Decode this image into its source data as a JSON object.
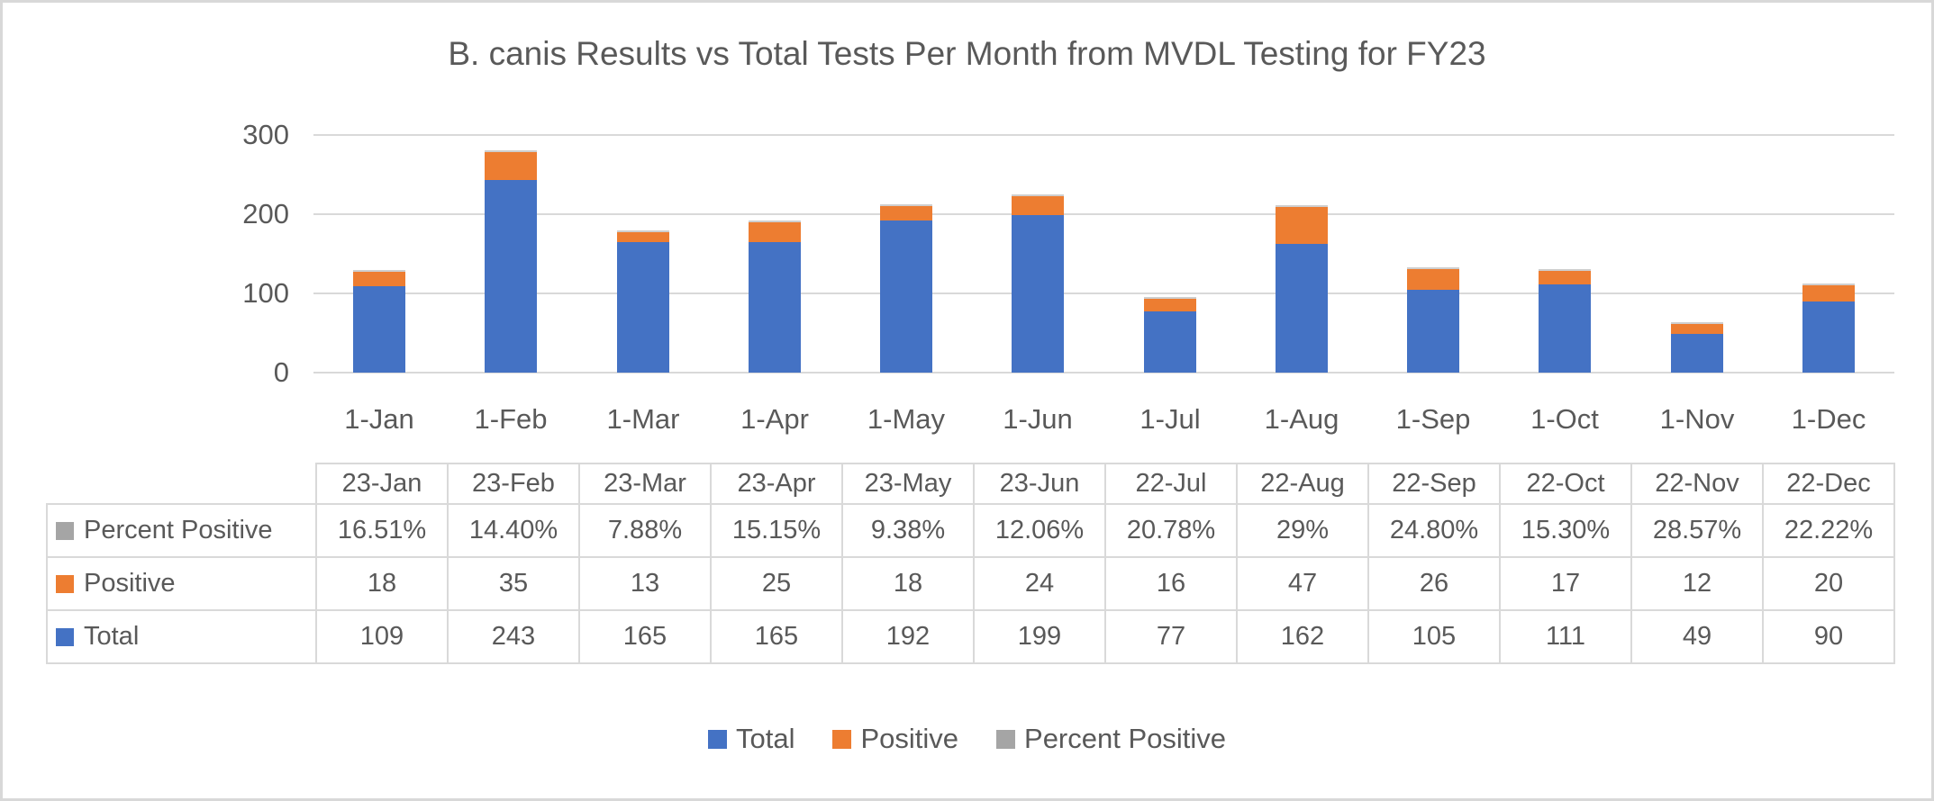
{
  "chart_data": {
    "type": "bar",
    "stacked": true,
    "title": "B. canis Results vs Total Tests Per Month from MVDL Testing for FY23",
    "x_tick_labels": [
      "1-Jan",
      "1-Feb",
      "1-Mar",
      "1-Apr",
      "1-May",
      "1-Jun",
      "1-Jul",
      "1-Aug",
      "1-Sep",
      "1-Oct",
      "1-Nov",
      "1-Dec"
    ],
    "y_ticks": [
      0,
      100,
      200,
      300
    ],
    "ylim": [
      0,
      300
    ],
    "grid": true,
    "legend_position": "bottom",
    "series": [
      {
        "name": "Total",
        "color": "#4472C4",
        "values": [
          109,
          243,
          165,
          165,
          192,
          199,
          77,
          162,
          105,
          111,
          49,
          90
        ]
      },
      {
        "name": "Positive",
        "color": "#ED7D31",
        "values": [
          18,
          35,
          13,
          25,
          18,
          24,
          16,
          47,
          26,
          17,
          12,
          20
        ]
      },
      {
        "name": "Percent Positive",
        "color": "#A5A5A5",
        "values": [
          0.1651,
          0.144,
          0.0788,
          0.1515,
          0.0938,
          0.1206,
          0.2078,
          0.29,
          0.248,
          0.153,
          0.2857,
          0.2222
        ]
      }
    ]
  },
  "table": {
    "column_headers": [
      "23-Jan",
      "23-Feb",
      "23-Mar",
      "23-Apr",
      "23-May",
      "23-Jun",
      "22-Jul",
      "22-Aug",
      "22-Sep",
      "22-Oct",
      "22-Nov",
      "22-Dec"
    ],
    "rows": [
      {
        "label": "Percent Positive",
        "key_color": "#A5A5A5",
        "values": [
          "16.51%",
          "14.40%",
          "7.88%",
          "15.15%",
          "9.38%",
          "12.06%",
          "20.78%",
          "29%",
          "24.80%",
          "15.30%",
          "28.57%",
          "22.22%"
        ]
      },
      {
        "label": "Positive",
        "key_color": "#ED7D31",
        "values": [
          "18",
          "35",
          "13",
          "25",
          "18",
          "24",
          "16",
          "47",
          "26",
          "17",
          "12",
          "20"
        ]
      },
      {
        "label": "Total",
        "key_color": "#4472C4",
        "values": [
          "109",
          "243",
          "165",
          "165",
          "192",
          "199",
          "77",
          "162",
          "105",
          "111",
          "49",
          "90"
        ]
      }
    ]
  },
  "legend": {
    "items": [
      {
        "label": "Total",
        "color": "#4472C4"
      },
      {
        "label": "Positive",
        "color": "#ED7D31"
      },
      {
        "label": "Percent Positive",
        "color": "#A5A5A5"
      }
    ]
  },
  "colors": {
    "total_blue": "#4472C4",
    "positive_orange": "#ED7D31",
    "percent_gray": "#A5A5A5",
    "gridline": "#D9D9D9",
    "text": "#595959",
    "border": "#D8D8D8"
  }
}
